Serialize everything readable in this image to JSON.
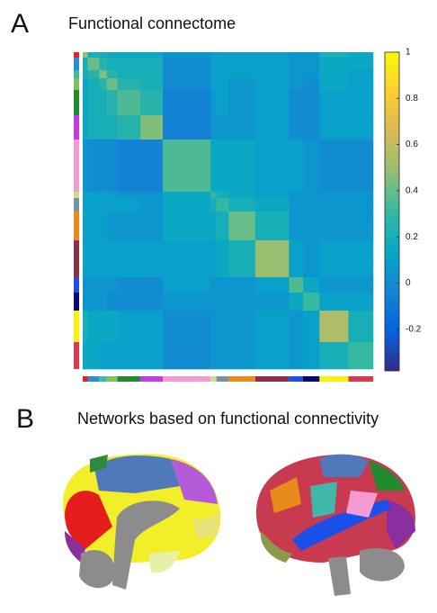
{
  "chart_data": {
    "type": "heatmap",
    "panel_label": "A",
    "title": "Functional connectome",
    "network_sizes": [
      6,
      14,
      9,
      13,
      28,
      27,
      58,
      7,
      15,
      32,
      41,
      17,
      20,
      35,
      30
    ],
    "network_colors": [
      "#e8202a",
      "#2a8fd0",
      "#3fb8a8",
      "#7cc35a",
      "#1f8a2e",
      "#c33ce0",
      "#f39bd2",
      "#c8e28a",
      "#7b8fa6",
      "#e88a1c",
      "#8c3048",
      "#1c4fe8",
      "#0a0a6e",
      "#f7f20c",
      "#d63a4e"
    ],
    "matrix": [
      [
        0.5,
        0.2,
        0.2,
        0.15,
        0.15,
        0.15,
        0.05,
        0.1,
        0.1,
        0.1,
        0.1,
        0.05,
        0.05,
        0.2,
        0.15
      ],
      [
        0.2,
        0.4,
        0.25,
        0.2,
        0.2,
        0.2,
        0.0,
        0.1,
        0.1,
        0.1,
        0.1,
        0.05,
        0.05,
        0.15,
        0.15
      ],
      [
        0.2,
        0.25,
        0.45,
        0.25,
        0.2,
        0.2,
        0.0,
        0.1,
        0.1,
        0.1,
        0.1,
        0.05,
        0.05,
        0.15,
        0.1
      ],
      [
        0.15,
        0.2,
        0.25,
        0.4,
        0.25,
        0.2,
        0.0,
        0.1,
        0.1,
        0.05,
        0.1,
        0.05,
        0.0,
        0.15,
        0.1
      ],
      [
        0.15,
        0.2,
        0.2,
        0.25,
        0.35,
        0.25,
        -0.05,
        0.05,
        0.1,
        0.05,
        0.1,
        0.0,
        0.0,
        0.1,
        0.1
      ],
      [
        0.15,
        0.2,
        0.2,
        0.2,
        0.25,
        0.45,
        -0.05,
        0.05,
        0.05,
        0.05,
        0.1,
        0.0,
        0.0,
        0.1,
        0.1
      ],
      [
        0.05,
        0.0,
        0.0,
        0.0,
        -0.05,
        -0.05,
        0.35,
        0.15,
        0.15,
        0.15,
        0.1,
        0.1,
        0.05,
        0.0,
        0.0
      ],
      [
        0.1,
        0.1,
        0.1,
        0.1,
        0.05,
        0.05,
        0.15,
        0.3,
        0.2,
        0.15,
        0.1,
        0.05,
        0.05,
        0.05,
        0.05
      ],
      [
        0.1,
        0.1,
        0.1,
        0.1,
        0.1,
        0.05,
        0.15,
        0.2,
        0.3,
        0.2,
        0.15,
        0.05,
        0.05,
        0.05,
        0.05
      ],
      [
        0.1,
        0.1,
        0.1,
        0.05,
        0.05,
        0.05,
        0.15,
        0.15,
        0.2,
        0.4,
        0.2,
        0.05,
        0.05,
        0.05,
        0.05
      ],
      [
        0.1,
        0.1,
        0.1,
        0.1,
        0.1,
        0.1,
        0.1,
        0.1,
        0.15,
        0.2,
        0.5,
        0.1,
        0.05,
        0.1,
        0.1
      ],
      [
        0.05,
        0.05,
        0.05,
        0.05,
        0.0,
        0.0,
        0.1,
        0.05,
        0.05,
        0.05,
        0.1,
        0.35,
        0.15,
        0.05,
        0.05
      ],
      [
        0.05,
        0.05,
        0.05,
        0.0,
        0.0,
        0.0,
        0.05,
        0.05,
        0.05,
        0.05,
        0.05,
        0.15,
        0.3,
        0.1,
        0.1
      ],
      [
        0.2,
        0.15,
        0.15,
        0.15,
        0.1,
        0.1,
        0.0,
        0.05,
        0.05,
        0.05,
        0.1,
        0.05,
        0.1,
        0.55,
        0.2
      ],
      [
        0.15,
        0.15,
        0.1,
        0.1,
        0.1,
        0.1,
        0.0,
        0.05,
        0.05,
        0.05,
        0.1,
        0.05,
        0.1,
        0.2,
        0.3
      ]
    ],
    "clim": [
      -0.38,
      1
    ],
    "cticks": [
      -0.2,
      0,
      0.2,
      0.4,
      0.6,
      0.8,
      1
    ],
    "colormap": [
      "#352a87",
      "#0363e1",
      "#1485d4",
      "#06a7c6",
      "#38b99e",
      "#92bf73",
      "#d9ba56",
      "#fcce2e",
      "#f9fb0e"
    ]
  },
  "panel_b": {
    "panel_label": "B",
    "title": "Networks based on functional connectivity"
  }
}
